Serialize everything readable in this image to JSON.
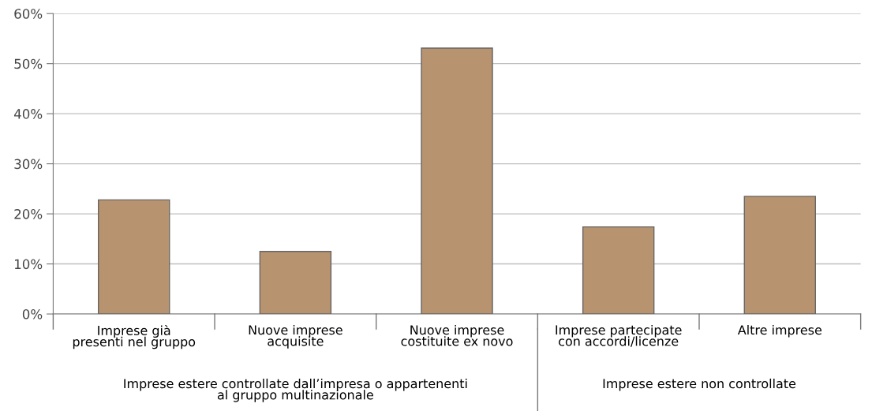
{
  "chart_data": {
    "type": "bar",
    "categories": [
      "Imprese già\npresenti nel gruppo",
      "Nuove imprese\nacquisite",
      "Nuove imprese\ncostituite ex novo",
      "Imprese partecipate\ncon accordi/licenze",
      "Altre imprese"
    ],
    "values": [
      22.8,
      12.5,
      53.1,
      17.4,
      23.5
    ],
    "color": "#b8936f",
    "ylim": [
      0,
      60
    ],
    "yticks": [
      {
        "value": 0,
        "label": "0%"
      },
      {
        "value": 10,
        "label": "10%"
      },
      {
        "value": 20,
        "label": "20%"
      },
      {
        "value": 30,
        "label": "30%"
      },
      {
        "value": 40,
        "label": "40%"
      },
      {
        "value": 50,
        "label": "50%"
      },
      {
        "value": 60,
        "label": "60%"
      }
    ],
    "grid": "y",
    "annotations": [
      "Imprese estere controllate dall’impresa o appartenenti\nal gruppo multinazionale",
      "Imprese estere non controllate"
    ]
  }
}
